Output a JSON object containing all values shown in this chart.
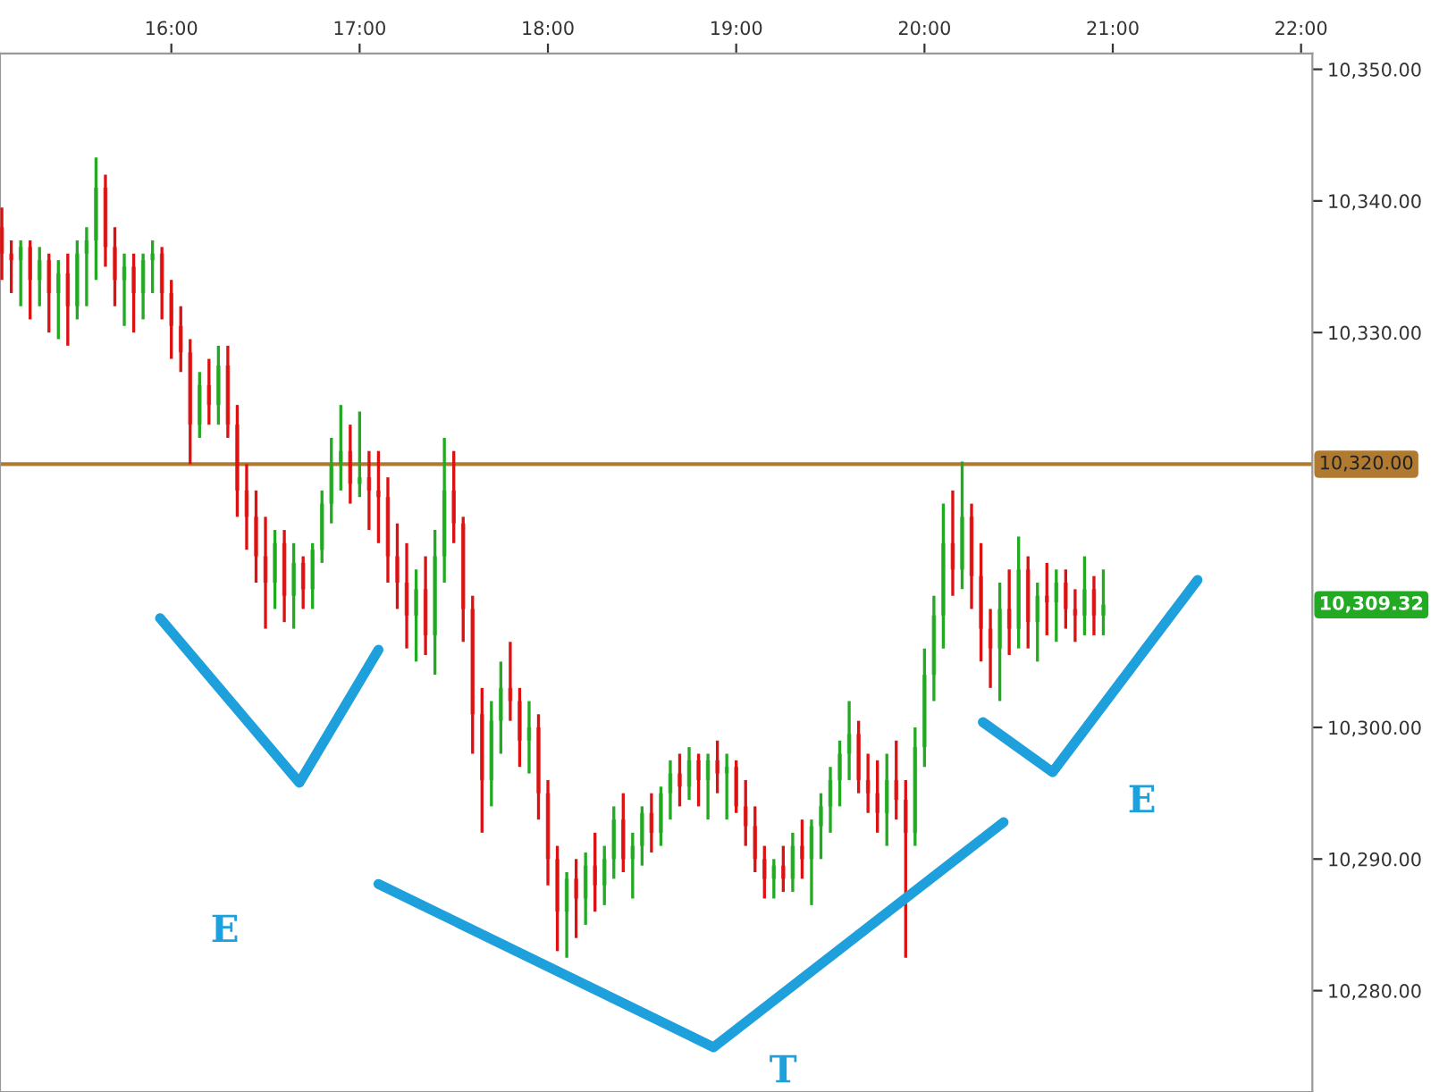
{
  "chart_data": {
    "type": "candlestick",
    "x": [
      15.1,
      15.15,
      15.2,
      15.25,
      15.3,
      15.35,
      15.4,
      15.45,
      15.5,
      15.55,
      15.6,
      15.65,
      15.7,
      15.75,
      15.8,
      15.85,
      15.9,
      15.95,
      16.0,
      16.05,
      16.1,
      16.15,
      16.2,
      16.25,
      16.3,
      16.35,
      16.4,
      16.45,
      16.5,
      16.55,
      16.6,
      16.65,
      16.7,
      16.75,
      16.8,
      16.85,
      16.9,
      16.95,
      17.0,
      17.05,
      17.1,
      17.15,
      17.2,
      17.25,
      17.3,
      17.35,
      17.4,
      17.45,
      17.5,
      17.55,
      17.6,
      17.65,
      17.7,
      17.75,
      17.8,
      17.85,
      17.9,
      17.95,
      18.0,
      18.05,
      18.1,
      18.15,
      18.2,
      18.25,
      18.3,
      18.35,
      18.4,
      18.45,
      18.5,
      18.55,
      18.6,
      18.65,
      18.7,
      18.75,
      18.8,
      18.85,
      18.9,
      18.95,
      19.0,
      19.05,
      19.1,
      19.15,
      19.2,
      19.25,
      19.3,
      19.35,
      19.4,
      19.45,
      19.5,
      19.55,
      19.6,
      19.65,
      19.7,
      19.75,
      19.8,
      19.85,
      19.9,
      19.95,
      20.0,
      20.05,
      20.1,
      20.15,
      20.2,
      20.25,
      20.3,
      20.35,
      20.4,
      20.45,
      20.5,
      20.55,
      20.6,
      20.65,
      20.7,
      20.75,
      20.8,
      20.85,
      20.9,
      20.95
    ],
    "ohlc": [
      [
        10338,
        10339.5,
        10334,
        10336
      ],
      [
        10336,
        10337,
        10333,
        10335.5
      ],
      [
        10335.5,
        10337,
        10332,
        10336.5
      ],
      [
        10336.5,
        10337,
        10331,
        10334
      ],
      [
        10334,
        10336.5,
        10332,
        10335.5
      ],
      [
        10335.5,
        10336,
        10330,
        10333
      ],
      [
        10333,
        10335.5,
        10329.5,
        10334.5
      ],
      [
        10334.5,
        10336,
        10329,
        10332
      ],
      [
        10332,
        10337,
        10331,
        10336
      ],
      [
        10336,
        10338,
        10332,
        10337
      ],
      [
        10337,
        10343.3,
        10334,
        10341
      ],
      [
        10341,
        10342,
        10335,
        10336.5
      ],
      [
        10336.5,
        10338,
        10332,
        10334
      ],
      [
        10334,
        10336,
        10330.5,
        10335
      ],
      [
        10335,
        10336,
        10330,
        10333
      ],
      [
        10333,
        10336,
        10331,
        10335.5
      ],
      [
        10335.5,
        10337,
        10333,
        10336
      ],
      [
        10336,
        10336.5,
        10331,
        10333
      ],
      [
        10333,
        10334,
        10328,
        10330.5
      ],
      [
        10330.5,
        10332,
        10327,
        10328.5
      ],
      [
        10328.5,
        10329.5,
        10320,
        10323
      ],
      [
        10323,
        10327,
        10322,
        10326
      ],
      [
        10326,
        10328,
        10323,
        10324.5
      ],
      [
        10324.5,
        10329,
        10323,
        10327.5
      ],
      [
        10327.5,
        10329,
        10322,
        10323
      ],
      [
        10323,
        10324.5,
        10316,
        10318
      ],
      [
        10318,
        10320,
        10313.5,
        10316
      ],
      [
        10316,
        10318,
        10311,
        10313
      ],
      [
        10313,
        10316,
        10307.5,
        10311
      ],
      [
        10311,
        10315,
        10309,
        10314
      ],
      [
        10314,
        10315,
        10308,
        10310
      ],
      [
        10310,
        10314,
        10307.5,
        10312.5
      ],
      [
        10312.5,
        10313,
        10309,
        10310.5
      ],
      [
        10310.5,
        10314,
        10309,
        10313.5
      ],
      [
        10313.5,
        10318,
        10312.5,
        10317
      ],
      [
        10317,
        10322,
        10315.5,
        10320
      ],
      [
        10320,
        10324.5,
        10318,
        10321
      ],
      [
        10321,
        10323,
        10317,
        10318.5
      ],
      [
        10318.5,
        10324,
        10317.5,
        10319
      ],
      [
        10319,
        10321,
        10315,
        10318
      ],
      [
        10318,
        10321,
        10314,
        10317.5
      ],
      [
        10317.5,
        10319,
        10311,
        10313
      ],
      [
        10313,
        10315.5,
        10309,
        10311
      ],
      [
        10311,
        10314,
        10306,
        10308.5
      ],
      [
        10308.5,
        10312,
        10305,
        10310.5
      ],
      [
        10310.5,
        10313,
        10305.5,
        10307
      ],
      [
        10307,
        10315,
        10304,
        10313
      ],
      [
        10313,
        10322,
        10311,
        10318
      ],
      [
        10318,
        10321,
        10314,
        10315.5
      ],
      [
        10315.5,
        10316,
        10306.5,
        10309
      ],
      [
        10309,
        10310,
        10298,
        10301
      ],
      [
        10301,
        10303,
        10292,
        10296
      ],
      [
        10296,
        10302,
        10294,
        10300.5
      ],
      [
        10300.5,
        10305,
        10298,
        10303
      ],
      [
        10303,
        10306.5,
        10300.5,
        10302
      ],
      [
        10302,
        10303,
        10297,
        10299
      ],
      [
        10299,
        10302,
        10296.5,
        10300
      ],
      [
        10300,
        10301,
        10293,
        10295
      ],
      [
        10295,
        10296,
        10288,
        10290
      ],
      [
        10290,
        10291,
        10283,
        10286
      ],
      [
        10286,
        10289,
        10282.5,
        10288.5
      ],
      [
        10288.5,
        10290,
        10284,
        10287
      ],
      [
        10287,
        10290.5,
        10285,
        10289.5
      ],
      [
        10289.5,
        10292,
        10286,
        10288
      ],
      [
        10288,
        10291,
        10286.5,
        10290
      ],
      [
        10290,
        10294,
        10288.5,
        10293
      ],
      [
        10293,
        10295,
        10289,
        10290
      ],
      [
        10290,
        10292,
        10287,
        10291
      ],
      [
        10291,
        10294,
        10289.5,
        10293.5
      ],
      [
        10293.5,
        10295,
        10290.5,
        10292
      ],
      [
        10292,
        10295.5,
        10291,
        10295
      ],
      [
        10295,
        10297.5,
        10293,
        10296.5
      ],
      [
        10296.5,
        10298,
        10294,
        10295.5
      ],
      [
        10295.5,
        10298.5,
        10294.5,
        10297.5
      ],
      [
        10297.5,
        10298,
        10294,
        10296
      ],
      [
        10296,
        10298,
        10293,
        10297.5
      ],
      [
        10297.5,
        10299,
        10295,
        10296.5
      ],
      [
        10296.5,
        10298,
        10293,
        10297
      ],
      [
        10297,
        10297.5,
        10293.5,
        10294
      ],
      [
        10294,
        10296,
        10291,
        10292.5
      ],
      [
        10292.5,
        10294,
        10289,
        10290
      ],
      [
        10290,
        10291,
        10287,
        10288.5
      ],
      [
        10288.5,
        10290,
        10287,
        10289.5
      ],
      [
        10289.5,
        10291,
        10287.5,
        10288.5
      ],
      [
        10288.5,
        10292,
        10287.5,
        10291
      ],
      [
        10291,
        10293,
        10288.5,
        10290
      ],
      [
        10290,
        10293,
        10286.5,
        10292.5
      ],
      [
        10292.5,
        10295,
        10290,
        10294
      ],
      [
        10294,
        10297,
        10292,
        10296
      ],
      [
        10296,
        10299,
        10294,
        10298
      ],
      [
        10298,
        10302,
        10296,
        10299.5
      ],
      [
        10299.5,
        10300.5,
        10295,
        10296
      ],
      [
        10296,
        10298,
        10293.5,
        10295
      ],
      [
        10295,
        10297.5,
        10292,
        10293.5
      ],
      [
        10293.5,
        10298,
        10291,
        10296
      ],
      [
        10296,
        10299,
        10293,
        10294.5
      ],
      [
        10294.5,
        10296,
        10282.5,
        10292
      ],
      [
        10292,
        10300,
        10291,
        10298.5
      ],
      [
        10298.5,
        10306,
        10297,
        10304
      ],
      [
        10304,
        10310,
        10302,
        10308.5
      ],
      [
        10308.5,
        10317,
        10306,
        10314
      ],
      [
        10314,
        10318,
        10310,
        10312
      ],
      [
        10312,
        10320.2,
        10310.5,
        10316
      ],
      [
        10316,
        10317,
        10309,
        10311.5
      ],
      [
        10311.5,
        10314,
        10305,
        10307.5
      ],
      [
        10307.5,
        10309,
        10303,
        10306
      ],
      [
        10306,
        10311,
        10302,
        10309
      ],
      [
        10309,
        10312,
        10305.5,
        10307.5
      ],
      [
        10307.5,
        10314.5,
        10306,
        10312
      ],
      [
        10312,
        10313,
        10306,
        10308
      ],
      [
        10308,
        10311,
        10305,
        10310
      ],
      [
        10310,
        10312.5,
        10307,
        10309.5
      ],
      [
        10309.5,
        10312,
        10306.5,
        10311
      ],
      [
        10311,
        10312,
        10307.5,
        10309
      ],
      [
        10309,
        10310.5,
        10306.5,
        10308.5
      ],
      [
        10308.5,
        10313,
        10307,
        10310.5
      ],
      [
        10310.5,
        10311.5,
        10307,
        10308.5
      ],
      [
        10308.5,
        10312,
        10307,
        10309.32
      ]
    ],
    "colors": [
      "#dd1111",
      "#dd1111",
      "#22aa22",
      "#dd1111",
      "#22aa22",
      "#dd1111",
      "#22aa22",
      "#dd1111",
      "#22aa22",
      "#22aa22",
      "#22aa22",
      "#dd1111",
      "#dd1111",
      "#22aa22",
      "#dd1111",
      "#22aa22",
      "#22aa22",
      "#dd1111",
      "#dd1111",
      "#dd1111",
      "#dd1111",
      "#22aa22",
      "#dd1111",
      "#22aa22",
      "#dd1111",
      "#dd1111",
      "#dd1111",
      "#dd1111",
      "#dd1111",
      "#22aa22",
      "#dd1111",
      "#22aa22",
      "#dd1111",
      "#22aa22",
      "#22aa22",
      "#22aa22",
      "#22aa22",
      "#dd1111",
      "#22aa22",
      "#dd1111",
      "#dd1111",
      "#dd1111",
      "#dd1111",
      "#dd1111",
      "#22aa22",
      "#dd1111",
      "#22aa22",
      "#22aa22",
      "#dd1111",
      "#dd1111",
      "#dd1111",
      "#dd1111",
      "#22aa22",
      "#22aa22",
      "#dd1111",
      "#dd1111",
      "#22aa22",
      "#dd1111",
      "#dd1111",
      "#dd1111",
      "#22aa22",
      "#dd1111",
      "#22aa22",
      "#dd1111",
      "#22aa22",
      "#22aa22",
      "#dd1111",
      "#22aa22",
      "#22aa22",
      "#dd1111",
      "#22aa22",
      "#22aa22",
      "#dd1111",
      "#22aa22",
      "#dd1111",
      "#22aa22",
      "#dd1111",
      "#22aa22",
      "#dd1111",
      "#dd1111",
      "#dd1111",
      "#dd1111",
      "#22aa22",
      "#dd1111",
      "#22aa22",
      "#dd1111",
      "#22aa22",
      "#22aa22",
      "#22aa22",
      "#22aa22",
      "#22aa22",
      "#dd1111",
      "#dd1111",
      "#dd1111",
      "#22aa22",
      "#dd1111",
      "#dd1111",
      "#22aa22",
      "#22aa22",
      "#22aa22",
      "#22aa22",
      "#dd1111",
      "#22aa22",
      "#dd1111",
      "#dd1111",
      "#dd1111",
      "#22aa22",
      "#dd1111",
      "#22aa22",
      "#dd1111",
      "#22aa22",
      "#dd1111",
      "#22aa22",
      "#dd1111",
      "#dd1111",
      "#22aa22",
      "#dd1111",
      "#22aa22"
    ],
    "series": [
      {
        "type": "line",
        "color": "#1ea0dc",
        "x": [
          15.94,
          16.68,
          17.1
        ],
        "values": [
          10308.3,
          10295.8,
          10305.9
        ]
      },
      {
        "type": "line",
        "color": "#1ea0dc",
        "x": [
          17.1,
          18.88,
          20.42
        ],
        "values": [
          10288.1,
          10275.7,
          10292.8
        ]
      },
      {
        "type": "line",
        "color": "#1ea0dc",
        "x": [
          20.31,
          20.68,
          21.45
        ],
        "values": [
          10300.4,
          10296.6,
          10311.2
        ]
      }
    ],
    "xlim": [
      15.09,
      22.06
    ],
    "ylim": [
      10272.3,
      10351.2
    ],
    "xticks": [
      {
        "value": 16,
        "label": "16:00"
      },
      {
        "value": 17,
        "label": "17:00"
      },
      {
        "value": 18,
        "label": "18:00"
      },
      {
        "value": 19,
        "label": "19:00"
      },
      {
        "value": 20,
        "label": "20:00"
      },
      {
        "value": 21,
        "label": "21:00"
      },
      {
        "value": 22,
        "label": "22:00"
      }
    ],
    "yticks": [
      {
        "value": 10280,
        "label": "10,280.00"
      },
      {
        "value": 10290,
        "label": "10,290.00"
      },
      {
        "value": 10300,
        "label": "10,300.00"
      },
      {
        "value": 10330,
        "label": "10,330.00"
      },
      {
        "value": 10340,
        "label": "10,340.00"
      },
      {
        "value": 10350,
        "label": "10,350.00"
      }
    ],
    "ref_lines": [
      {
        "axis": "y",
        "value": 10320,
        "label": "10,320.00",
        "color": "#b07a30"
      }
    ],
    "annotations": [
      "10,309.32",
      "E",
      "T",
      "E"
    ],
    "grid": false,
    "legend": false
  }
}
